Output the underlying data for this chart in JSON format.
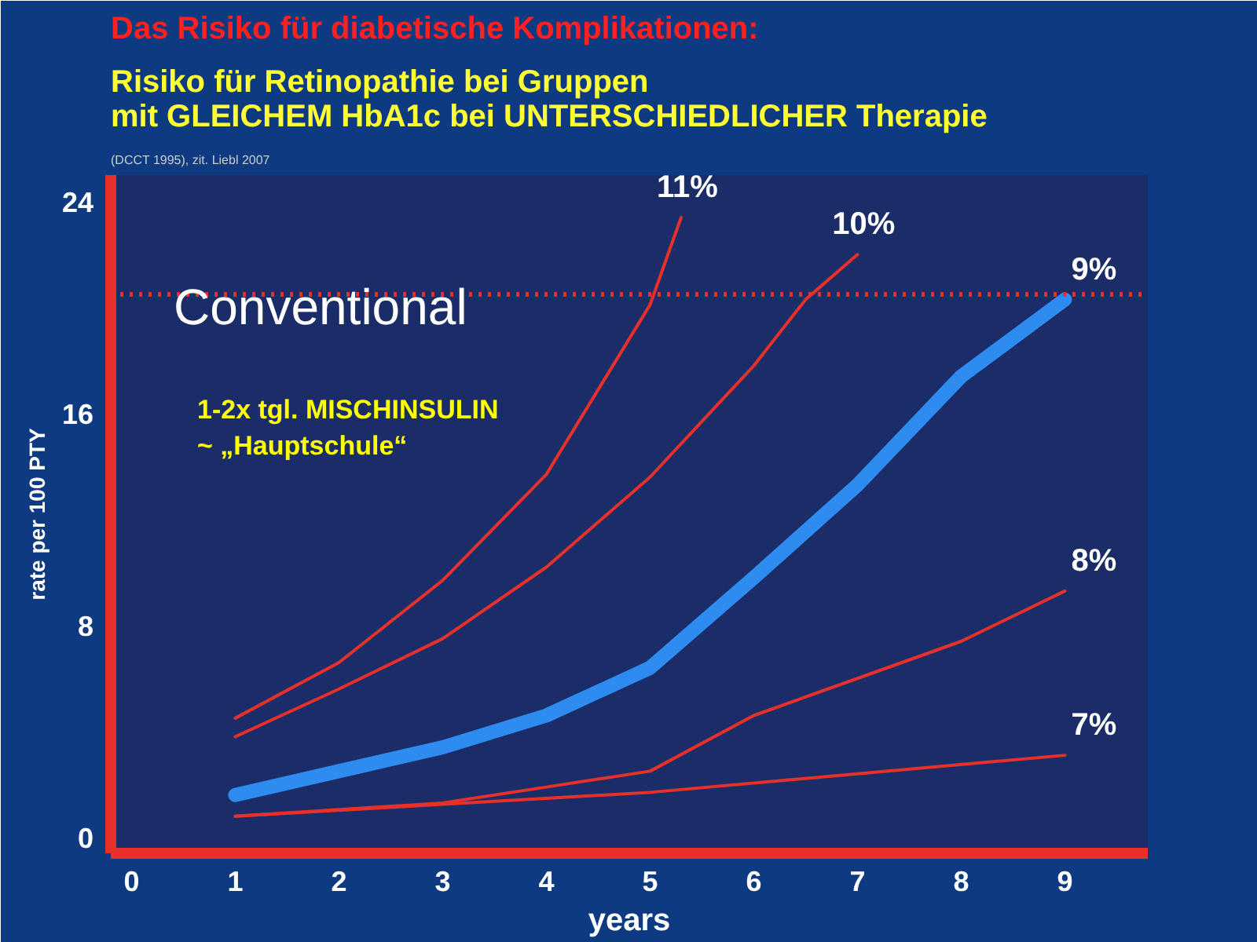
{
  "chart_data": {
    "type": "line",
    "title": "Das Risiko für diabetische Komplikationen:",
    "subtitle": "Risiko für Retinopathie bei Gruppen\nmit GLEICHEM HbA1c bei UNTERSCHIEDLICHER Therapie",
    "xlabel": "years",
    "ylabel": "rate per 100 PTY",
    "annotations": [
      "(DCCT 1995), zit. Liebl 2007",
      "Conventional",
      "1-2x tgl. MISCHINSULIN\n~ „Hauptschule“"
    ],
    "series": [
      {
        "name": "11%",
        "color": "#e8302a",
        "x": [
          1,
          2,
          3,
          4,
          5,
          5.3
        ],
        "values": [
          4.5,
          6.6,
          9.7,
          13.7,
          20.1,
          23.4
        ]
      },
      {
        "name": "10%",
        "color": "#e8302a",
        "x": [
          1,
          2,
          3,
          4,
          5,
          6,
          6.5,
          7
        ],
        "values": [
          3.8,
          5.6,
          7.5,
          10.2,
          13.6,
          17.8,
          20.3,
          22.0
        ]
      },
      {
        "name": "9%",
        "color": "#2e8cf0",
        "x": [
          1,
          2,
          3,
          4,
          5,
          6,
          7,
          8,
          9
        ],
        "values": [
          1.6,
          2.5,
          3.4,
          4.6,
          6.4,
          9.8,
          13.3,
          17.4,
          20.3
        ]
      },
      {
        "name": "8%",
        "color": "#e8302a",
        "x": [
          1,
          3,
          4,
          5,
          6,
          7,
          8,
          9
        ],
        "values": [
          0.8,
          1.3,
          1.9,
          2.5,
          4.6,
          6.0,
          7.4,
          9.3
        ]
      },
      {
        "name": "7%",
        "color": "#e8302a",
        "x": [
          1,
          5,
          9
        ],
        "values": [
          0.8,
          1.7,
          3.1
        ]
      }
    ],
    "xlim": [
      -0.2,
      9.8
    ],
    "xticks": [
      0,
      1,
      2,
      3,
      4,
      5,
      6,
      7,
      8,
      9
    ],
    "ylim": [
      -0.6,
      25
    ],
    "yticks": [
      0,
      8,
      16,
      24
    ],
    "ref_lines": [
      {
        "axis": "y",
        "value": 20.5,
        "color": "#e8302a",
        "line_style": "dotted"
      }
    ],
    "grid": false
  }
}
